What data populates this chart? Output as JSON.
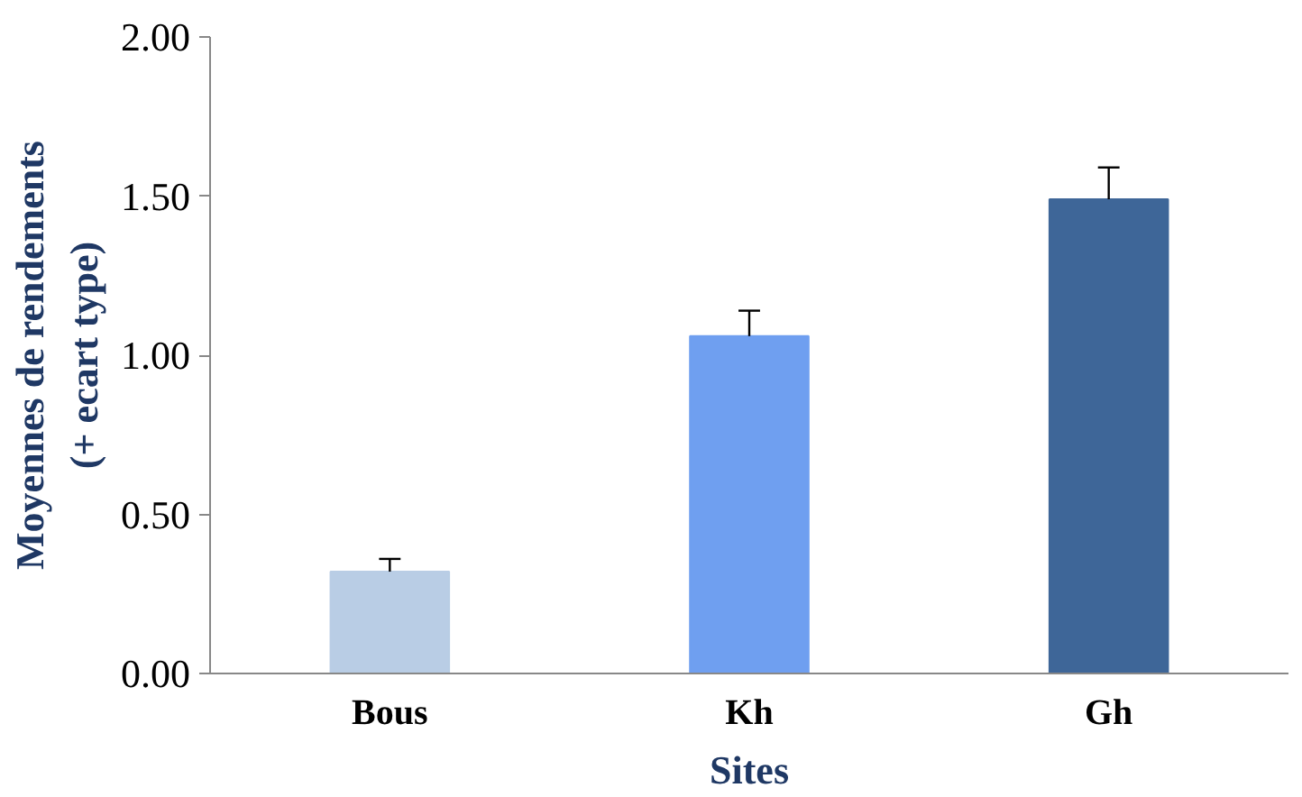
{
  "chart_data": {
    "type": "bar",
    "xlabel": "Sites",
    "ylabel": "Moyennes de rendements\n(+ ecart type)",
    "categories": [
      "Bous",
      "Kh",
      "Gh"
    ],
    "values": [
      0.32,
      1.06,
      1.49
    ],
    "colors": [
      "#b9cde5",
      "#6f9ff0",
      "#3e6698"
    ],
    "errors": [
      [
        0.32,
        0.36
      ],
      [
        1.06,
        1.14
      ],
      [
        1.49,
        1.59
      ]
    ],
    "ylim": [
      0,
      2
    ],
    "yticks": [
      {
        "value": 0,
        "label": "0.00"
      },
      {
        "value": 0.5,
        "label": "0.50"
      },
      {
        "value": 1,
        "label": "1.00"
      },
      {
        "value": 1.5,
        "label": "1.50"
      },
      {
        "value": 2,
        "label": "2.00"
      }
    ],
    "grid": false
  }
}
